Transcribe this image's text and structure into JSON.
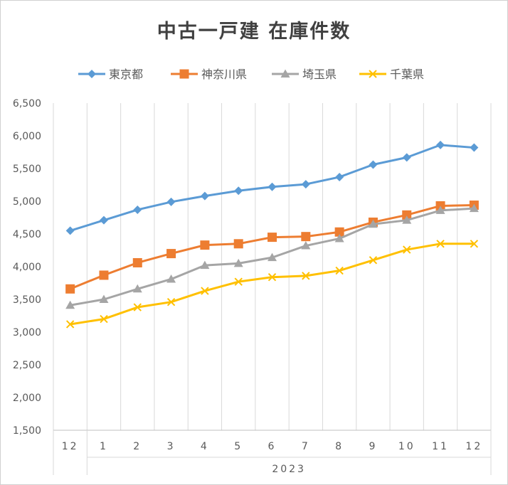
{
  "chart_data": {
    "type": "line",
    "title": "中古一戸建 在庫件数",
    "categories": [
      "12",
      "1",
      "2",
      "3",
      "4",
      "5",
      "6",
      "7",
      "8",
      "9",
      "10",
      "11",
      "12"
    ],
    "group_label": "2023",
    "ylim": [
      1500,
      6500
    ],
    "ytick_labels": [
      "1,500",
      "2,000",
      "2,500",
      "3,000",
      "3,500",
      "4,000",
      "4,500",
      "5,000",
      "5,500",
      "6,000",
      "6,500"
    ],
    "legend_position": "top",
    "grid": "vertical",
    "series": [
      {
        "name": "東京都",
        "color": "#5B9BD5",
        "marker": "diamond",
        "values": [
          4550,
          4710,
          4870,
          4990,
          5080,
          5160,
          5220,
          5260,
          5370,
          5560,
          5670,
          5860,
          5820
        ]
      },
      {
        "name": "神奈川県",
        "color": "#ED7D31",
        "marker": "square",
        "values": [
          3660,
          3870,
          4060,
          4200,
          4330,
          4350,
          4450,
          4460,
          4530,
          4680,
          4790,
          4930,
          4940
        ]
      },
      {
        "name": "埼玉県",
        "color": "#A5A5A5",
        "marker": "triangle",
        "values": [
          3410,
          3500,
          3660,
          3810,
          4020,
          4050,
          4140,
          4320,
          4430,
          4650,
          4710,
          4860,
          4890
        ]
      },
      {
        "name": "千葉県",
        "color": "#FFC000",
        "marker": "x",
        "values": [
          3120,
          3200,
          3380,
          3460,
          3630,
          3770,
          3840,
          3860,
          3940,
          4100,
          4260,
          4350,
          4350
        ]
      }
    ]
  }
}
